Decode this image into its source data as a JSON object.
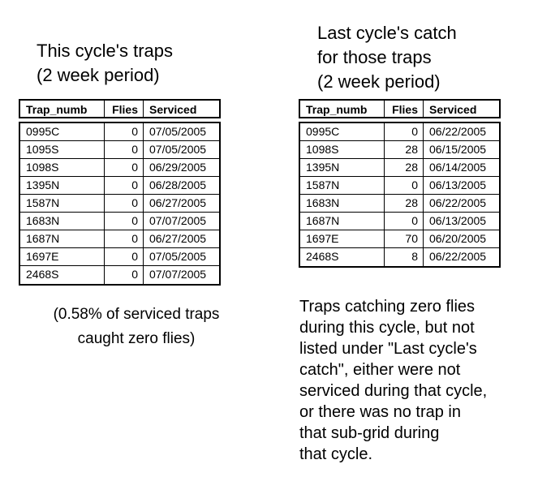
{
  "colors": {
    "background": "#ffffff",
    "text": "#000000",
    "table_border": "#000000"
  },
  "left": {
    "title_lines": [
      "This cycle's traps",
      "(2 week period)"
    ],
    "table": {
      "columns": [
        "Trap_numb",
        "Flies",
        "Serviced"
      ],
      "rows": [
        {
          "trap": "0995C",
          "flies": "0",
          "serviced": "07/05/2005"
        },
        {
          "trap": "1095S",
          "flies": "0",
          "serviced": "07/05/2005"
        },
        {
          "trap": "1098S",
          "flies": "0",
          "serviced": "06/29/2005"
        },
        {
          "trap": "1395N",
          "flies": "0",
          "serviced": "06/28/2005"
        },
        {
          "trap": "1587N",
          "flies": "0",
          "serviced": "06/27/2005"
        },
        {
          "trap": "1683N",
          "flies": "0",
          "serviced": "07/07/2005"
        },
        {
          "trap": "1687N",
          "flies": "0",
          "serviced": "06/27/2005"
        },
        {
          "trap": "1697E",
          "flies": "0",
          "serviced": "07/05/2005"
        },
        {
          "trap": "2468S",
          "flies": "0",
          "serviced": "07/07/2005"
        }
      ]
    },
    "caption_lines": [
      "(0.58% of serviced traps",
      "caught zero flies)"
    ]
  },
  "right": {
    "title_lines": [
      "Last cycle's catch",
      "for those traps",
      "(2 week period)"
    ],
    "table": {
      "columns": [
        "Trap_numb",
        "Flies",
        "Serviced"
      ],
      "rows": [
        {
          "trap": "0995C",
          "flies": "0",
          "serviced": "06/22/2005"
        },
        {
          "trap": "1098S",
          "flies": "28",
          "serviced": "06/15/2005"
        },
        {
          "trap": "1395N",
          "flies": "28",
          "serviced": "06/14/2005"
        },
        {
          "trap": "1587N",
          "flies": "0",
          "serviced": "06/13/2005"
        },
        {
          "trap": "1683N",
          "flies": "28",
          "serviced": "06/22/2005"
        },
        {
          "trap": "1687N",
          "flies": "0",
          "serviced": "06/13/2005"
        },
        {
          "trap": "1697E",
          "flies": "70",
          "serviced": "06/20/2005"
        },
        {
          "trap": "2468S",
          "flies": "8",
          "serviced": "06/22/2005"
        }
      ]
    },
    "note_lines": [
      "Traps catching zero flies",
      "during this cycle, but not",
      "listed under \"Last cycle's",
      "catch\", either were not",
      "serviced during that cycle,",
      "or there was no trap in",
      "that sub-grid during",
      "that cycle."
    ]
  }
}
